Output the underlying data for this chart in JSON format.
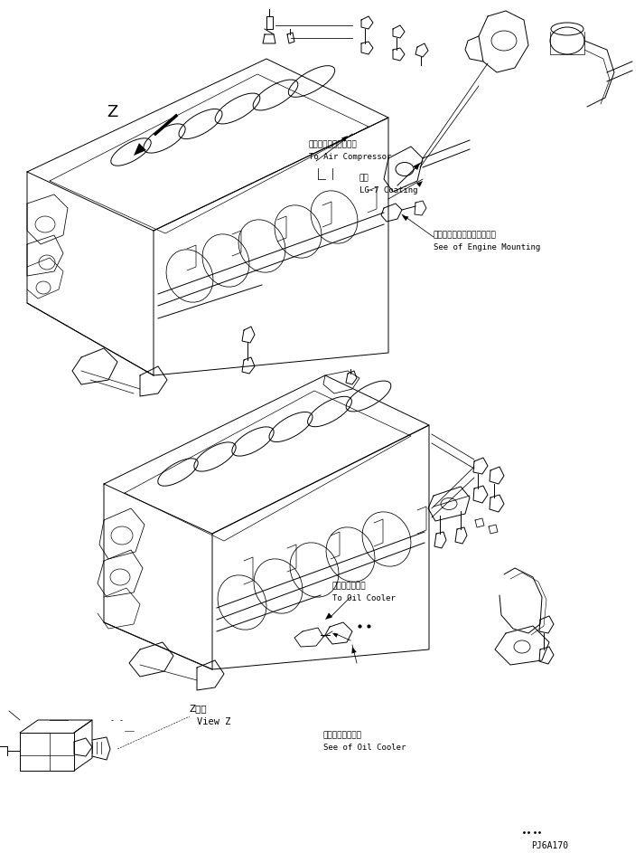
{
  "bg_color": "#ffffff",
  "lc": "#000000",
  "lw": 0.7,
  "fig_width": 7.13,
  "fig_height": 9.43,
  "dpi": 100,
  "labels": {
    "air_compressor_ja": "エアーコンプレッサへ",
    "air_compressor_en": "To Air Compressor",
    "coating_ja": "塗布",
    "coating_en": "LG-7 Coating",
    "engine_mounting_ja": "エンジンマウンティング参照",
    "engine_mounting_en": "See of Engine Mounting",
    "oil_cooler_ja": "オイルクーラへ",
    "oil_cooler_en": "To Oil Cooler",
    "view_z_ja": "Z　視",
    "view_z_en": "View Z",
    "oil_cooler_ref_ja": "オイルクーラ参照",
    "oil_cooler_ref_en": "See of Oil Cooler",
    "z_label": "Z",
    "part_code": "PJ6A170"
  }
}
